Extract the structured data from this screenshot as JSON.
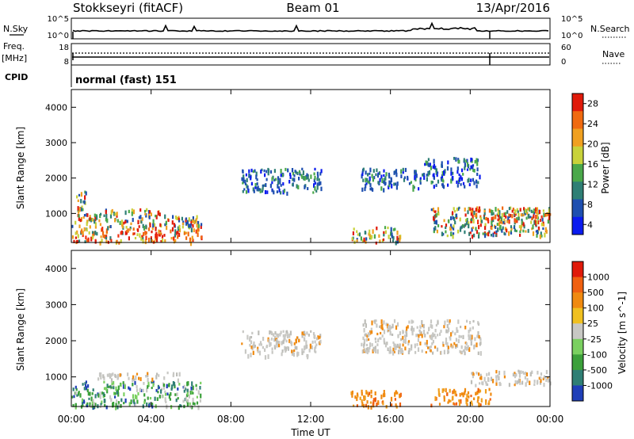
{
  "header": {
    "station": "Stokkseyri (fitACF)",
    "beam": "Beam 01",
    "date": "13/Apr/2016"
  },
  "strip_labels": {
    "nsky": "N.Sky",
    "nsearch": "N.Search",
    "freq": "Freq.",
    "freq_unit": "[MHz]",
    "nave": "Nave",
    "cpid": "CPID",
    "cpid_value": "normal (fast) 151"
  },
  "strip_ticks": {
    "noise_left_top": "10^5",
    "noise_left_bottom": "10^0",
    "noise_right_top": "10^5",
    "noise_right_bottom": "10^0",
    "freq_left_top": "18",
    "freq_left_bottom": "8",
    "freq_right_top": "60",
    "freq_right_bottom": "0"
  },
  "colors": {
    "frame": "#000000",
    "background": "#ffffff",
    "ground_scatter": "#c8c8c4"
  },
  "chart_data": [
    {
      "type": "heatmap",
      "title": "Power",
      "xlabel": "",
      "ylabel": "Slant Range [km]",
      "xlim_hours": [
        0,
        24
      ],
      "x_ticks": [
        "00:00",
        "04:00",
        "08:00",
        "12:00",
        "16:00",
        "20:00",
        "00:00"
      ],
      "ylim_km": [
        180,
        4500
      ],
      "y_ticks": [
        1000,
        2000,
        3000,
        4000
      ],
      "colorbar": {
        "label": "Power [dB]",
        "ticks": [
          4,
          8,
          12,
          16,
          20,
          24,
          28
        ],
        "colors": [
          "#0b1bef",
          "#1e4fb0",
          "#2f7f75",
          "#4aa84a",
          "#c8d23a",
          "#f0a020",
          "#f06a10",
          "#e01a0a"
        ]
      },
      "regions": [
        {
          "t": [
            0.0,
            6.5
          ],
          "r": [
            200,
            650
          ],
          "level": "high"
        },
        {
          "t": [
            0.0,
            6.5
          ],
          "r": [
            650,
            1000
          ],
          "level": "medium"
        },
        {
          "t": [
            1.3,
            4.5
          ],
          "r": [
            1000,
            1150
          ],
          "level": "medium"
        },
        {
          "t": [
            0.2,
            0.8
          ],
          "r": [
            1000,
            1700
          ],
          "level": "medium"
        },
        {
          "t": [
            8.5,
            12.5
          ],
          "r": [
            1600,
            2300
          ],
          "level": "low"
        },
        {
          "t": [
            14.5,
            17.5
          ],
          "r": [
            1700,
            2300
          ],
          "level": "low"
        },
        {
          "t": [
            17.5,
            20.5
          ],
          "r": [
            1800,
            2600
          ],
          "level": "low"
        },
        {
          "t": [
            14.0,
            16.5
          ],
          "r": [
            200,
            650
          ],
          "level": "medium"
        },
        {
          "t": [
            18.0,
            24.0
          ],
          "r": [
            400,
            1200
          ],
          "level": "medium"
        },
        {
          "t": [
            20.0,
            24.0
          ],
          "r": [
            800,
            1200
          ],
          "level": "high"
        }
      ]
    },
    {
      "type": "heatmap",
      "title": "Velocity",
      "xlabel": "Time UT",
      "ylabel": "Slant Range [km]",
      "xlim_hours": [
        0,
        24
      ],
      "x_ticks": [
        "00:00",
        "04:00",
        "08:00",
        "12:00",
        "16:00",
        "20:00",
        "00:00"
      ],
      "ylim_km": [
        180,
        4500
      ],
      "y_ticks": [
        1000,
        2000,
        3000,
        4000
      ],
      "colorbar": {
        "label": "Velocity [m s^-1]",
        "ticks": [
          1000,
          500,
          100,
          25,
          -25,
          -100,
          -500,
          -1000
        ],
        "colors": [
          "#1f3fb8",
          "#2f7f75",
          "#3ba03a",
          "#7ad060",
          "#c8c8c4",
          "#f0c020",
          "#f08a10",
          "#f06010",
          "#e01a0a"
        ]
      },
      "regions": [
        {
          "t": [
            0.0,
            6.5
          ],
          "r": [
            200,
            900
          ],
          "level": "green"
        },
        {
          "t": [
            1.3,
            5.5
          ],
          "r": [
            950,
            1150
          ],
          "level": "grey"
        },
        {
          "t": [
            8.5,
            12.5
          ],
          "r": [
            1600,
            2300
          ],
          "level": "grey"
        },
        {
          "t": [
            14.5,
            20.5
          ],
          "r": [
            1700,
            2600
          ],
          "level": "grey"
        },
        {
          "t": [
            14.0,
            16.5
          ],
          "r": [
            200,
            650
          ],
          "level": "orange"
        },
        {
          "t": [
            18.0,
            21.0
          ],
          "r": [
            250,
            700
          ],
          "level": "orange"
        },
        {
          "t": [
            20.0,
            24.0
          ],
          "r": [
            800,
            1200
          ],
          "level": "grey"
        }
      ]
    }
  ]
}
